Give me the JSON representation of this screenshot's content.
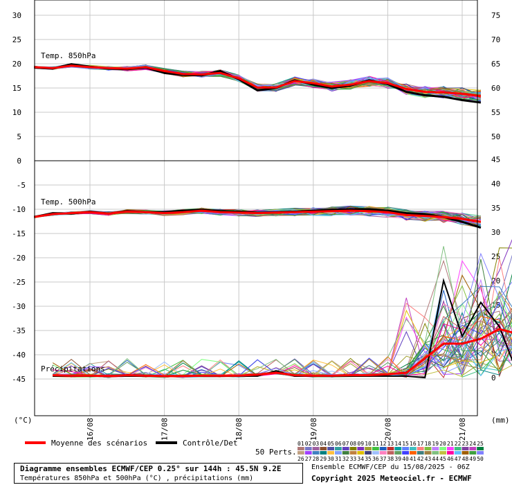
{
  "chart_data": {
    "type": "line",
    "x_dates": [
      "16/08",
      "17/08",
      "18/08",
      "19/08",
      "20/08",
      "21/08"
    ],
    "left_axis_unit": "(°C)",
    "right_axis_unit": "(mm)",
    "left_ticks_upper": [
      30,
      25,
      20,
      15,
      10,
      5,
      0
    ],
    "left_ticks_lower": [
      -5,
      -10,
      -15,
      -20,
      -25,
      -30,
      -35,
      -40,
      -45
    ],
    "right_ticks_upper": [
      75,
      70,
      65,
      60,
      55,
      50
    ],
    "right_ticks_lower": [
      45,
      40,
      35,
      30,
      25,
      20,
      15,
      10,
      5,
      0
    ],
    "panel_labels": {
      "t850": "Temp. 850hPa",
      "t500": "Temp. 500hPa",
      "precip": "Précipitations"
    },
    "t850": {
      "mean": [
        19.3,
        19.1,
        19.6,
        19.3,
        19.1,
        19.0,
        19.3,
        18.5,
        17.9,
        17.8,
        18.1,
        17.0,
        15.1,
        15.1,
        16.4,
        16.0,
        15.3,
        15.7,
        16.4,
        16.0,
        14.8,
        14.2,
        14.1,
        13.8,
        13.3
      ],
      "control": [
        19.2,
        19.0,
        19.9,
        19.4,
        19.0,
        18.9,
        19.2,
        18.1,
        17.7,
        17.6,
        18.5,
        16.8,
        14.5,
        15.0,
        16.6,
        15.7,
        15.0,
        15.5,
        16.6,
        15.8,
        14.2,
        13.5,
        13.2,
        12.5,
        12.0
      ]
    },
    "t500": {
      "mean": [
        -11.6,
        -11.0,
        -10.8,
        -10.6,
        -10.9,
        -10.5,
        -10.6,
        -10.8,
        -10.6,
        -10.3,
        -10.6,
        -10.7,
        -10.8,
        -10.7,
        -10.6,
        -10.5,
        -10.4,
        -10.3,
        -10.4,
        -10.6,
        -11.2,
        -11.4,
        -11.6,
        -12.0,
        -12.6
      ],
      "control": [
        -11.6,
        -10.8,
        -10.9,
        -10.5,
        -10.9,
        -10.4,
        -10.6,
        -10.6,
        -10.3,
        -10.1,
        -10.4,
        -10.5,
        -10.7,
        -10.6,
        -10.5,
        -10.3,
        -10.1,
        -10.0,
        -10.0,
        -10.3,
        -10.8,
        -11.0,
        -11.6,
        -12.6,
        -13.8
      ]
    },
    "precip": {
      "mean": [
        0.5,
        0.4,
        0.4,
        0.3,
        0.5,
        0.4,
        0.3,
        0.3,
        0.4,
        0.4,
        0.4,
        0.6,
        1.0,
        0.5,
        0.4,
        0.4,
        0.5,
        0.5,
        0.7,
        1.0,
        4.0,
        7.0,
        7.0,
        8.0,
        10.0,
        9.0
      ],
      "control": [
        0.3,
        0.3,
        0.3,
        0.3,
        0.3,
        0.3,
        0.3,
        0.3,
        0.3,
        0.3,
        0.3,
        0.3,
        1.4,
        0.3,
        0.3,
        0.3,
        0.3,
        0.3,
        0.3,
        0.3,
        0.0,
        20.0,
        8.5,
        15.5,
        10.5,
        0.5
      ]
    },
    "legend": {
      "mean_label": "Moyenne des scénarios",
      "control_label": "Contrôle/Det",
      "perts_label": "50 Perts.",
      "perts_top": [
        "01",
        "02",
        "03",
        "04",
        "05",
        "06",
        "07",
        "08",
        "09",
        "10",
        "11",
        "12",
        "13",
        "14",
        "15",
        "16",
        "17",
        "18",
        "19",
        "20",
        "21",
        "22",
        "23",
        "24",
        "25"
      ],
      "perts_bottom": [
        "26",
        "27",
        "28",
        "29",
        "30",
        "31",
        "32",
        "33",
        "34",
        "35",
        "36",
        "37",
        "38",
        "39",
        "40",
        "41",
        "42",
        "43",
        "44",
        "45",
        "46",
        "47",
        "48",
        "49",
        "50"
      ]
    },
    "colors": {
      "mean": "#ff0000",
      "control": "#000000",
      "grid": "#c8c8c8"
    },
    "footer": {
      "title": "Diagramme ensembles ECMWF/CEP 0.25° sur 144h : 45.5N 9.2E",
      "subtitle": "Températures 850hPa et 500hPa (°C) , précipitations (mm)",
      "run_info": "Ensemble ECMWF/CEP du 15/08/2025 - 06Z",
      "copyright": "Copyright 2025 Meteociel.fr - ECMWF"
    }
  }
}
